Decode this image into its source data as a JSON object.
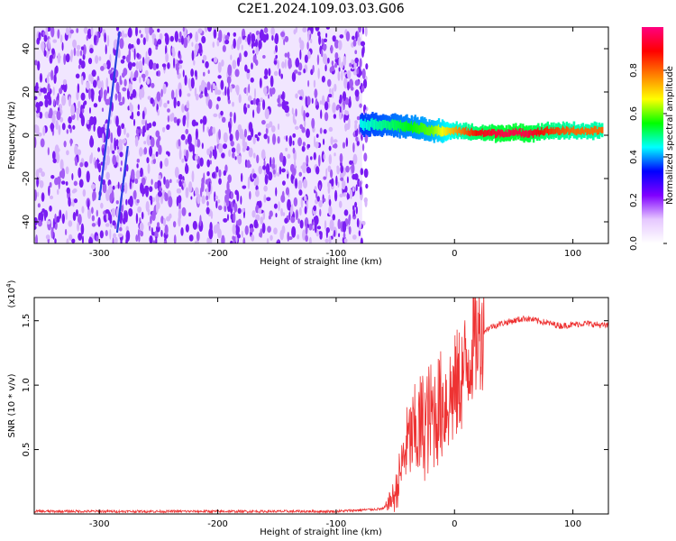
{
  "figure_title": "C2E1.2024.109.03.03.G06",
  "chart_data": [
    {
      "type": "heatmap",
      "title": "C2E1.2024.109.03.03.G06",
      "xlabel": "Height of straight line (km)",
      "ylabel": "Frequency (Hz)",
      "xlim": [
        -355,
        130
      ],
      "ylim": [
        -50,
        50
      ],
      "x_ticks": [
        -300,
        -200,
        -100,
        0,
        100
      ],
      "y_ticks": [
        -40,
        -20,
        0,
        20,
        40
      ],
      "colorbar": {
        "label": "Normalized spectral amplitude",
        "range": [
          0,
          1
        ],
        "ticks": [
          0.0,
          0.2,
          0.4,
          0.6,
          0.8
        ],
        "colors": [
          "#ffffff",
          "#e6c8ff",
          "#8000ff",
          "#0000ff",
          "#00ffff",
          "#00ff00",
          "#ffff00",
          "#ff8000",
          "#ff0000",
          "#ff0080"
        ]
      },
      "noise_region": {
        "x_from": -355,
        "x_to": -78,
        "freq_from": -50,
        "freq_to": 50
      },
      "signal_band": [
        {
          "x": -80,
          "freq": 5,
          "amp": 0.45
        },
        {
          "x": -60,
          "freq": 5,
          "amp": 0.5
        },
        {
          "x": -40,
          "freq": 4,
          "amp": 0.55
        },
        {
          "x": -20,
          "freq": 2,
          "amp": 0.6
        },
        {
          "x": 0,
          "freq": 2,
          "amp": 0.75
        },
        {
          "x": 20,
          "freq": 1,
          "amp": 0.9
        },
        {
          "x": 40,
          "freq": 1,
          "amp": 0.95
        },
        {
          "x": 60,
          "freq": 1,
          "amp": 0.95
        },
        {
          "x": 80,
          "freq": 2,
          "amp": 0.85
        },
        {
          "x": 100,
          "freq": 2,
          "amp": 0.8
        },
        {
          "x": 125,
          "freq": 2,
          "amp": 0.8
        }
      ]
    },
    {
      "type": "line",
      "xlabel": "Height of straight line (km)",
      "ylabel": "SNR (10 * v/v)",
      "y_multiplier": "(x10",
      "y_multiplier_exp": "4",
      "y_multiplier_close": ")",
      "xlim": [
        -355,
        130
      ],
      "ylim": [
        0,
        1.68
      ],
      "x_ticks": [
        -300,
        -200,
        -100,
        0,
        100
      ],
      "y_ticks": [
        0.5,
        1.0,
        1.5
      ],
      "y_tick_labels": [
        "0.5",
        "1.0",
        "1.5"
      ],
      "series": [
        {
          "color": "#ee3333",
          "x": [
            -355,
            -300,
            -200,
            -100,
            -60,
            -50,
            -45,
            -40,
            -35,
            -30,
            -25,
            -20,
            -15,
            -10,
            -5,
            0,
            5,
            10,
            15,
            20,
            25,
            30,
            40,
            50,
            60,
            70,
            80,
            90,
            100,
            110,
            120,
            130
          ],
          "y": [
            0.02,
            0.02,
            0.02,
            0.02,
            0.04,
            0.15,
            0.35,
            0.55,
            0.6,
            0.65,
            0.7,
            0.75,
            0.8,
            0.85,
            0.9,
            0.95,
            1.05,
            1.15,
            1.3,
            1.38,
            1.42,
            1.45,
            1.48,
            1.5,
            1.52,
            1.5,
            1.48,
            1.46,
            1.47,
            1.48,
            1.47,
            1.46
          ]
        }
      ]
    }
  ]
}
